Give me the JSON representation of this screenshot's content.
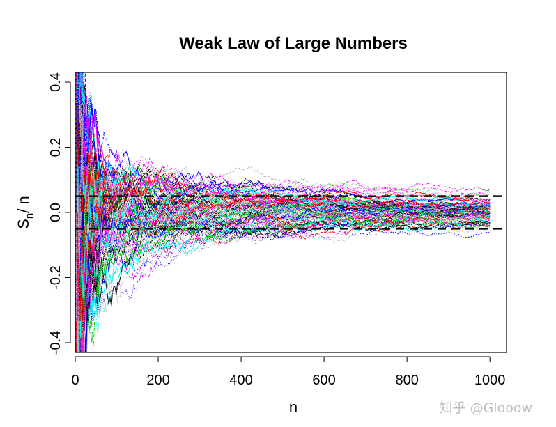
{
  "chart_data": {
    "type": "line",
    "title": "Weak Law of Large Numbers",
    "xlabel": "n",
    "ylabel_main": "S",
    "ylabel_sub": "n",
    "ylabel_tail": "/ n",
    "xlim": [
      0,
      1040
    ],
    "ylim": [
      -0.43,
      0.43
    ],
    "x_ticks": [
      0,
      200,
      400,
      600,
      800,
      1000
    ],
    "x_tick_labels": [
      "0",
      "200",
      "400",
      "600",
      "800",
      "1000"
    ],
    "y_ticks": [
      -0.4,
      -0.2,
      0.0,
      0.2,
      0.4
    ],
    "y_tick_labels": [
      "-0.4",
      "-0.2",
      "0.0",
      "0.2",
      "0.4"
    ],
    "reference_lines": [
      0.05,
      -0.05
    ],
    "n_max": 1000,
    "series_count": 100,
    "palette": [
      "#000000",
      "#ff0000",
      "#00cd00",
      "#0000ff",
      "#00ffff",
      "#ff00ff",
      "#bebebe"
    ],
    "grid": false,
    "legend": "none"
  },
  "watermark": "知乎 @Glooow"
}
